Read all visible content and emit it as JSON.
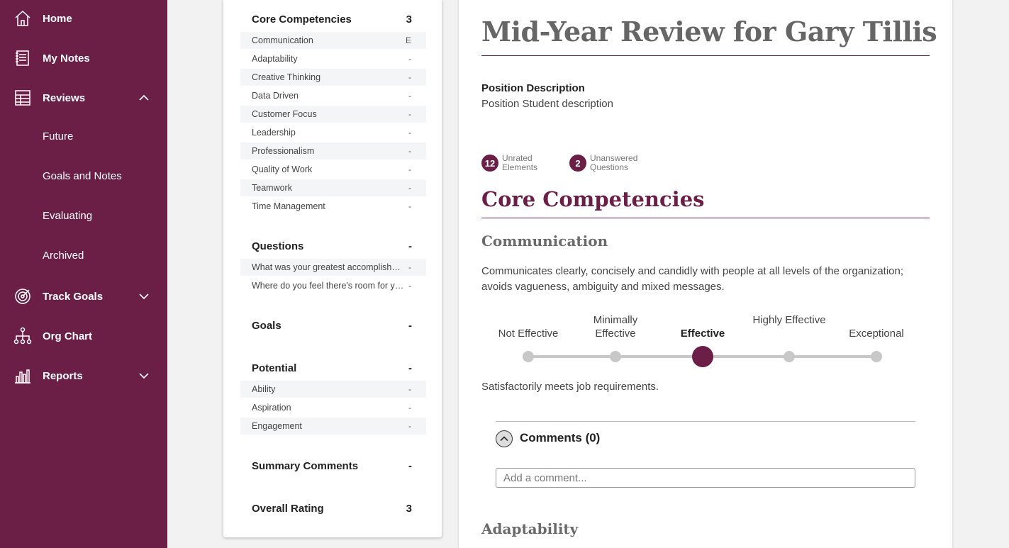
{
  "sidebar": {
    "items": [
      {
        "label": "Home",
        "icon": "home-icon"
      },
      {
        "label": "My Notes",
        "icon": "notes-icon"
      },
      {
        "label": "Reviews",
        "icon": "reviews-icon",
        "expanded": true
      },
      {
        "label": "Track Goals",
        "icon": "target-icon",
        "expanded": false
      },
      {
        "label": "Org Chart",
        "icon": "org-chart-icon"
      },
      {
        "label": "Reports",
        "icon": "bar-chart-icon",
        "expanded": false
      }
    ],
    "reviews_subitems": [
      "Future",
      "Goals and Notes",
      "Evaluating",
      "Archived"
    ]
  },
  "outline": {
    "core": {
      "title": "Core Competencies",
      "value": "3",
      "rows": [
        {
          "name": "Communication",
          "value": "E"
        },
        {
          "name": "Adaptability",
          "value": "-"
        },
        {
          "name": "Creative Thinking",
          "value": "-"
        },
        {
          "name": "Data Driven",
          "value": "-"
        },
        {
          "name": "Customer Focus",
          "value": "-"
        },
        {
          "name": "Leadership",
          "value": "-"
        },
        {
          "name": "Professionalism",
          "value": "-"
        },
        {
          "name": "Quality of Work",
          "value": "-"
        },
        {
          "name": "Teamwork",
          "value": "-"
        },
        {
          "name": "Time Management",
          "value": "-"
        }
      ]
    },
    "questions": {
      "title": "Questions",
      "value": "-",
      "rows": [
        {
          "name": "What was your greatest accomplishment this year?",
          "value": "-"
        },
        {
          "name": "Where do you feel there's room for you to grow?",
          "value": "-"
        }
      ]
    },
    "goals": {
      "title": "Goals",
      "value": "-"
    },
    "potential": {
      "title": "Potential",
      "value": "-",
      "rows": [
        {
          "name": "Ability",
          "value": "-"
        },
        {
          "name": "Aspiration",
          "value": "-"
        },
        {
          "name": "Engagement",
          "value": "-"
        }
      ]
    },
    "summary": {
      "title": "Summary Comments",
      "value": "-"
    },
    "overall": {
      "title": "Overall Rating",
      "value": "3"
    }
  },
  "main": {
    "title": "Mid-Year Review for Gary Tillis",
    "position_label": "Position Description",
    "position_value": "Position Student description",
    "stats": [
      {
        "count": "12",
        "label": "Unrated Elements"
      },
      {
        "count": "2",
        "label": "Unanswered Questions"
      }
    ],
    "section_title": "Core Competencies",
    "competency": {
      "title": "Communication",
      "description": "Communicates clearly, concisely and candidly with people at all levels of the organization; avoids vagueness, ambiguity and mixed messages.",
      "scale": [
        "Not Effective",
        "Minimally Effective",
        "Effective",
        "Highly Effective",
        "Exceptional"
      ],
      "selected_index": 2,
      "rating_description": "Satisfactorily meets job requirements."
    },
    "comments_label": "Comments (0)",
    "comment_placeholder": "Add a comment...",
    "next_competency_title": "Adaptability"
  },
  "colors": {
    "brand": "#6b1f46",
    "track": "#c8c8c8"
  }
}
